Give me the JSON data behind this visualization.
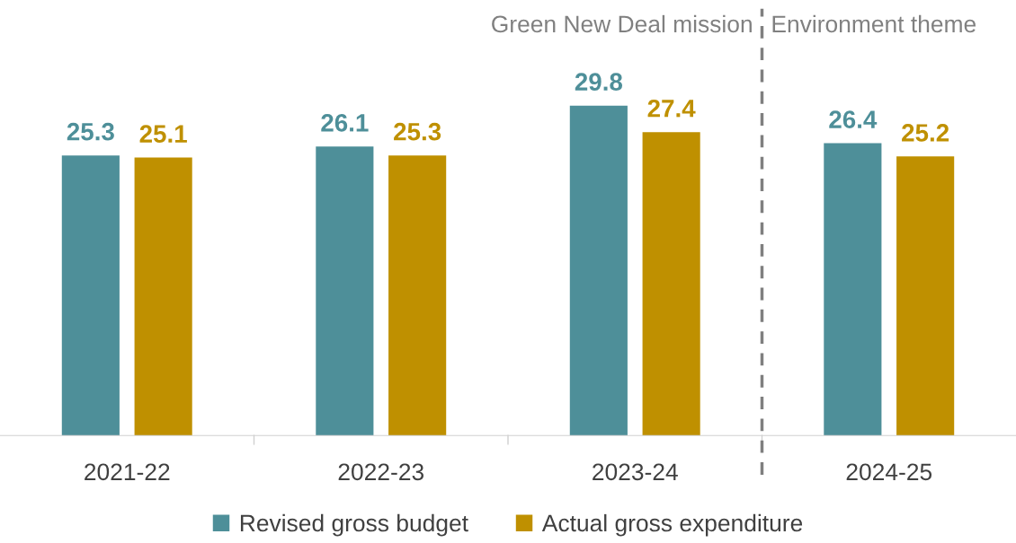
{
  "chart_data": {
    "type": "bar",
    "categories": [
      "2021-22",
      "2022-23",
      "2023-24",
      "2024-25"
    ],
    "series": [
      {
        "name": "Revised gross budget",
        "color": "#4e8f99",
        "values": [
          25.3,
          26.1,
          29.8,
          26.4
        ]
      },
      {
        "name": "Actual gross expenditure",
        "color": "#bf9000",
        "values": [
          25.1,
          25.3,
          27.4,
          25.2
        ]
      }
    ],
    "data_labels": true,
    "legend": "bottom",
    "grid": false,
    "annotations": [
      "Green New Deal mission",
      "Environment theme"
    ]
  }
}
